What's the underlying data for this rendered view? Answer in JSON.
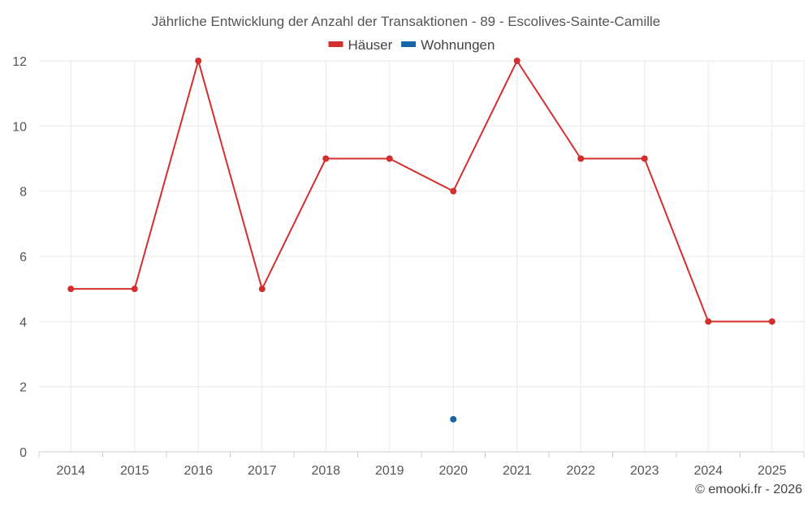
{
  "chart_data": {
    "type": "line",
    "title": "Jährliche Entwicklung der Anzahl der Transaktionen - 89 - Escolives-Sainte-Camille",
    "categories": [
      "2014",
      "2015",
      "2016",
      "2017",
      "2018",
      "2019",
      "2020",
      "2021",
      "2022",
      "2023",
      "2024",
      "2025"
    ],
    "series": [
      {
        "name": "Häuser",
        "color": "#d32f2f",
        "values": [
          5,
          5,
          12,
          5,
          9,
          9,
          8,
          12,
          9,
          9,
          4,
          4
        ]
      },
      {
        "name": "Wohnungen",
        "color": "#1565a8",
        "values": [
          null,
          null,
          null,
          null,
          null,
          null,
          1,
          null,
          null,
          null,
          null,
          null
        ]
      }
    ],
    "ylim": [
      0,
      12
    ],
    "yticks": [
      0,
      2,
      4,
      6,
      8,
      10,
      12
    ],
    "xlabel": "",
    "ylabel": "",
    "grid": true,
    "legend_position": "top-center"
  },
  "footer": {
    "credit": "© emooki.fr - 2026"
  }
}
